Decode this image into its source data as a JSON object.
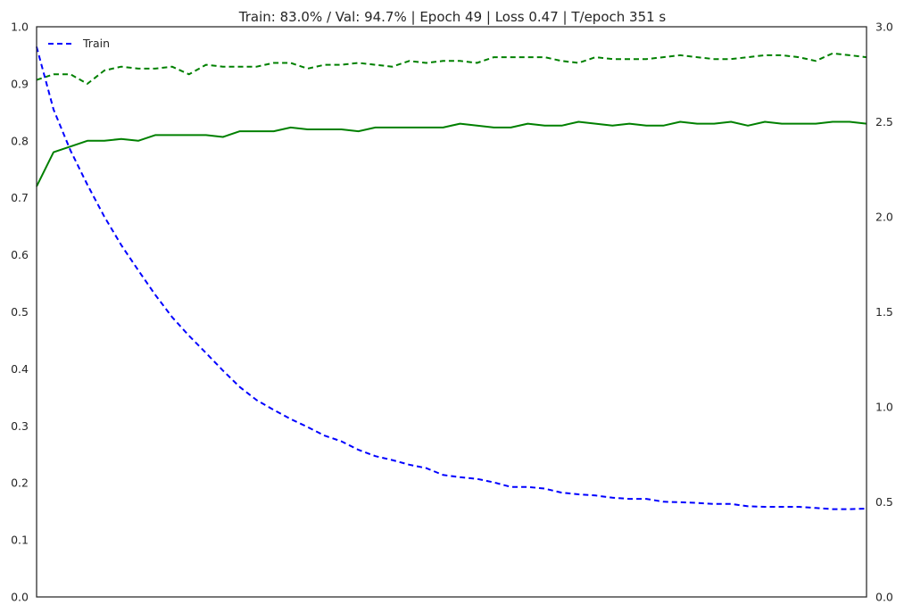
{
  "chart_data": {
    "type": "line",
    "title": "Train: 83.0% / Val: 94.7% | Epoch 49 | Loss 0.47 | T/epoch 351 s",
    "xlabel": "",
    "ylabel": "",
    "x_ticks_shown": false,
    "xlim": [
      0,
      49
    ],
    "ylim_left": [
      0.0,
      1.0
    ],
    "ylim_right": [
      0.0,
      3.0
    ],
    "left_ticks": [
      "0.0",
      "0.1",
      "0.2",
      "0.3",
      "0.4",
      "0.5",
      "0.6",
      "0.7",
      "0.8",
      "0.9",
      "1.0"
    ],
    "right_ticks": [
      "0.0",
      "0.5",
      "1.0",
      "1.5",
      "2.0",
      "2.5",
      "3.0"
    ],
    "grid": false,
    "legend": {
      "placement": "top-left",
      "entries": [
        "Train"
      ]
    },
    "x": [
      0,
      1,
      2,
      3,
      4,
      5,
      6,
      7,
      8,
      9,
      10,
      11,
      12,
      13,
      14,
      15,
      16,
      17,
      18,
      19,
      20,
      21,
      22,
      23,
      24,
      25,
      26,
      27,
      28,
      29,
      30,
      31,
      32,
      33,
      34,
      35,
      36,
      37,
      38,
      39,
      40,
      41,
      42,
      43,
      44,
      45,
      46,
      47,
      48,
      49
    ],
    "series": [
      {
        "name": "Train",
        "axis": "left",
        "style": "dashed",
        "color": "#0000ff",
        "values": [
          0.965,
          0.855,
          0.783,
          0.723,
          0.667,
          0.617,
          0.573,
          0.53,
          0.491,
          0.458,
          0.428,
          0.397,
          0.368,
          0.345,
          0.328,
          0.312,
          0.298,
          0.283,
          0.273,
          0.258,
          0.247,
          0.24,
          0.232,
          0.226,
          0.214,
          0.21,
          0.207,
          0.201,
          0.193,
          0.193,
          0.19,
          0.183,
          0.18,
          0.178,
          0.174,
          0.172,
          0.172,
          0.167,
          0.166,
          0.165,
          0.163,
          0.163,
          0.159,
          0.158,
          0.158,
          0.158,
          0.156,
          0.154,
          0.154,
          0.155
        ]
      },
      {
        "axis": "right",
        "style": "solid",
        "color": "#008000",
        "values": [
          2.16,
          2.34,
          2.37,
          2.4,
          2.4,
          2.41,
          2.4,
          2.43,
          2.43,
          2.43,
          2.43,
          2.42,
          2.45,
          2.45,
          2.45,
          2.47,
          2.46,
          2.46,
          2.46,
          2.45,
          2.47,
          2.47,
          2.47,
          2.47,
          2.47,
          2.49,
          2.48,
          2.47,
          2.47,
          2.49,
          2.48,
          2.48,
          2.5,
          2.49,
          2.48,
          2.49,
          2.48,
          2.48,
          2.5,
          2.49,
          2.49,
          2.5,
          2.48,
          2.5,
          2.49,
          2.49,
          2.49,
          2.5,
          2.5,
          2.49
        ]
      },
      {
        "axis": "right",
        "style": "dashed",
        "color": "#008000",
        "values": [
          2.72,
          2.75,
          2.75,
          2.7,
          2.77,
          2.79,
          2.78,
          2.78,
          2.79,
          2.75,
          2.8,
          2.79,
          2.79,
          2.79,
          2.81,
          2.81,
          2.78,
          2.8,
          2.8,
          2.81,
          2.8,
          2.79,
          2.82,
          2.81,
          2.82,
          2.82,
          2.81,
          2.84,
          2.84,
          2.84,
          2.84,
          2.82,
          2.81,
          2.84,
          2.83,
          2.83,
          2.83,
          2.84,
          2.85,
          2.84,
          2.83,
          2.83,
          2.84,
          2.85,
          2.85,
          2.84,
          2.82,
          2.86,
          2.85,
          2.84
        ]
      }
    ]
  }
}
